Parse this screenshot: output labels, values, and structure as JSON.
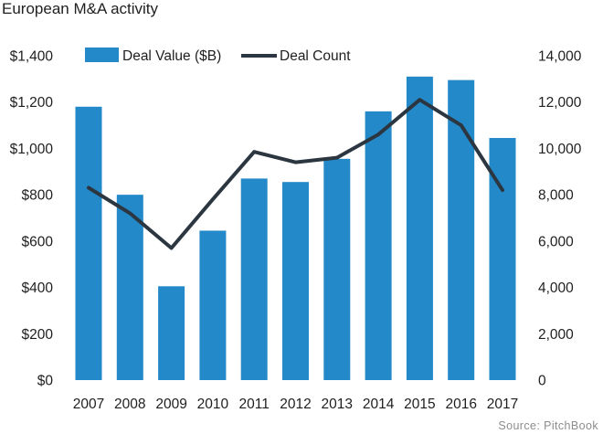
{
  "chart_data": {
    "type": "bar",
    "title": "European M&A activity",
    "source": "Source: PitchBook",
    "categories": [
      "2007",
      "2008",
      "2009",
      "2010",
      "2011",
      "2012",
      "2013",
      "2014",
      "2015",
      "2016",
      "2017"
    ],
    "series": [
      {
        "name": "Deal Value ($B)",
        "type": "bar",
        "axis": "left",
        "values": [
          1180,
          800,
          405,
          645,
          870,
          855,
          955,
          1160,
          1310,
          1295,
          1045
        ]
      },
      {
        "name": "Deal Count",
        "type": "line",
        "axis": "right",
        "values": [
          8300,
          7200,
          5700,
          7800,
          9850,
          9400,
          9600,
          10600,
          12100,
          11000,
          8200
        ]
      }
    ],
    "left_axis": {
      "label": "",
      "ylim": [
        0,
        1400
      ],
      "ticks": [
        "$0",
        "$200",
        "$400",
        "$600",
        "$800",
        "$1,000",
        "$1,200",
        "$1,400"
      ]
    },
    "right_axis": {
      "label": "",
      "ylim": [
        0,
        14000
      ],
      "ticks": [
        "0",
        "2,000",
        "4,000",
        "6,000",
        "8,000",
        "10,000",
        "12,000",
        "14,000"
      ]
    },
    "legend": {
      "position": "top",
      "items": [
        "Deal Value ($B)",
        "Deal Count"
      ]
    },
    "grid": false,
    "colors": {
      "bar": "#2389c9",
      "line": "#2b3640",
      "text": "#1f1f1f",
      "source": "#8c8c8c"
    }
  }
}
